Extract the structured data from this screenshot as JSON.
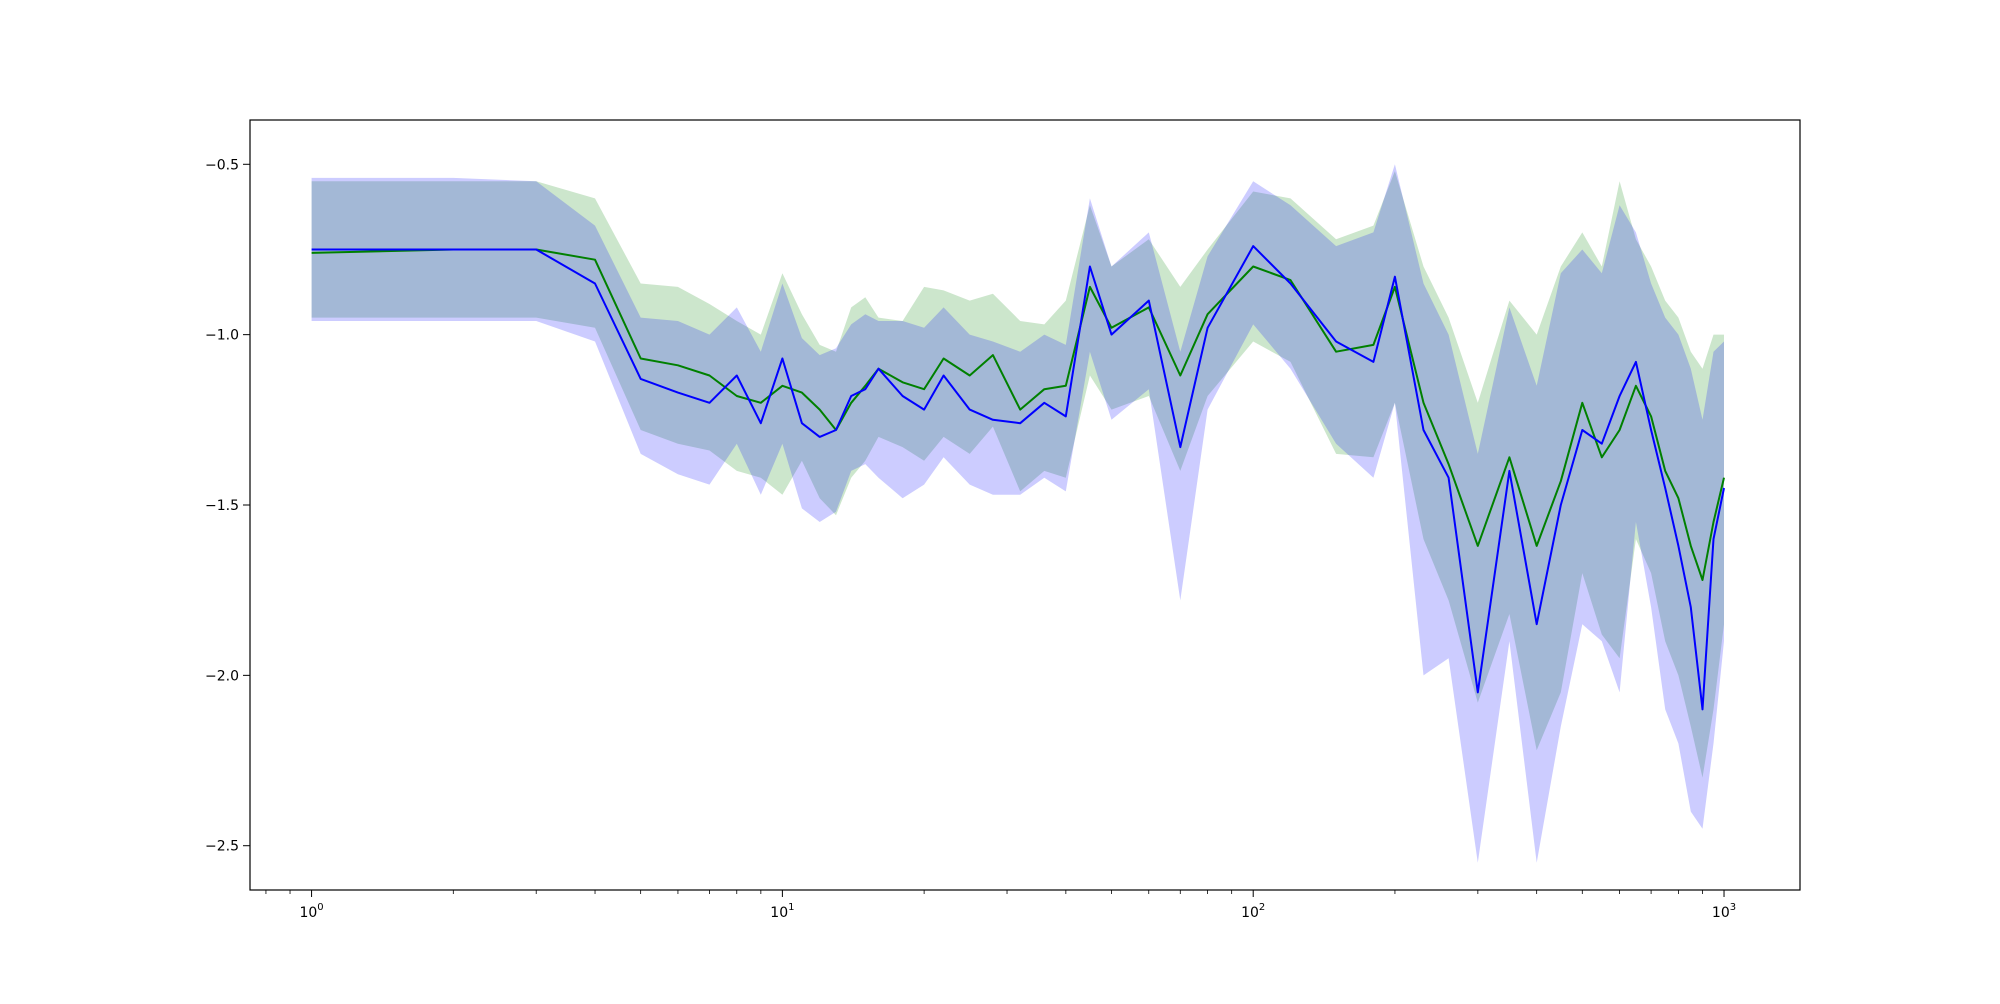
{
  "chart_data": {
    "type": "line",
    "title": "",
    "xlabel": "",
    "ylabel": "",
    "xscale": "log",
    "xlim": [
      0.74,
      1450
    ],
    "ylim": [
      -2.63,
      -0.37
    ],
    "grid": false,
    "legend": "none",
    "y_ticks": [
      {
        "value": -0.5,
        "label": "−0.5"
      },
      {
        "value": -1.0,
        "label": "−1.0"
      },
      {
        "value": -1.5,
        "label": "−1.5"
      },
      {
        "value": -2.0,
        "label": "−2.0"
      },
      {
        "value": -2.5,
        "label": "−2.5"
      }
    ],
    "x_ticks": [
      {
        "value": 1,
        "base": "10",
        "exp": "0"
      },
      {
        "value": 10,
        "base": "10",
        "exp": "1"
      },
      {
        "value": 100,
        "base": "10",
        "exp": "2"
      },
      {
        "value": 1000,
        "base": "10",
        "exp": "3"
      }
    ],
    "colors": {
      "green": "#008000",
      "blue": "#0000ff",
      "green_band": "rgba(0,128,0,0.2)",
      "blue_band": "rgba(0,0,255,0.2)"
    },
    "series": [
      {
        "color": "#008000",
        "band": "rgba(0,128,0,0.2)",
        "x": [
          1,
          2,
          3,
          4,
          5,
          6,
          7,
          8,
          9,
          10,
          11,
          12,
          13,
          14,
          15,
          16,
          18,
          20,
          22,
          25,
          28,
          32,
          36,
          40,
          45,
          50,
          60,
          70,
          80,
          100,
          120,
          150,
          180,
          200,
          230,
          260,
          300,
          350,
          400,
          450,
          500,
          550,
          600,
          650,
          700,
          750,
          800,
          850,
          900,
          950,
          1000
        ],
        "values": [
          -0.76,
          -0.75,
          -0.75,
          -0.78,
          -1.07,
          -1.09,
          -1.12,
          -1.18,
          -1.2,
          -1.15,
          -1.17,
          -1.22,
          -1.28,
          -1.2,
          -1.15,
          -1.1,
          -1.14,
          -1.16,
          -1.07,
          -1.12,
          -1.06,
          -1.22,
          -1.16,
          -1.15,
          -0.86,
          -0.98,
          -0.92,
          -1.12,
          -0.94,
          -0.8,
          -0.84,
          -1.05,
          -1.03,
          -0.86,
          -1.2,
          -1.38,
          -1.62,
          -1.36,
          -1.62,
          -1.43,
          -1.2,
          -1.36,
          -1.28,
          -1.15,
          -1.24,
          -1.4,
          -1.48,
          -1.62,
          -1.72,
          -1.55,
          -1.42
        ],
        "upper": [
          -0.55,
          -0.55,
          -0.55,
          -0.6,
          -0.85,
          -0.86,
          -0.91,
          -0.96,
          -1.0,
          -0.82,
          -0.94,
          -1.03,
          -1.05,
          -0.92,
          -0.89,
          -0.95,
          -0.96,
          -0.86,
          -0.87,
          -0.9,
          -0.88,
          -0.96,
          -0.97,
          -0.9,
          -0.62,
          -0.8,
          -0.72,
          -0.86,
          -0.75,
          -0.58,
          -0.6,
          -0.72,
          -0.68,
          -0.52,
          -0.8,
          -0.95,
          -1.2,
          -0.9,
          -1.0,
          -0.8,
          -0.7,
          -0.8,
          -0.55,
          -0.72,
          -0.8,
          -0.9,
          -0.95,
          -1.05,
          -1.1,
          -1.0,
          -1.0
        ],
        "lower": [
          -0.95,
          -0.95,
          -0.95,
          -0.98,
          -1.28,
          -1.32,
          -1.34,
          -1.4,
          -1.42,
          -1.47,
          -1.37,
          -1.48,
          -1.53,
          -1.42,
          -1.37,
          -1.3,
          -1.33,
          -1.37,
          -1.3,
          -1.35,
          -1.27,
          -1.46,
          -1.4,
          -1.42,
          -1.12,
          -1.22,
          -1.18,
          -1.4,
          -1.18,
          -1.02,
          -1.08,
          -1.35,
          -1.36,
          -1.2,
          -1.6,
          -1.78,
          -2.08,
          -1.82,
          -2.22,
          -2.05,
          -1.7,
          -1.88,
          -1.95,
          -1.6,
          -1.7,
          -1.9,
          -2.0,
          -2.15,
          -2.3,
          -2.1,
          -1.85
        ]
      },
      {
        "color": "#0000ff",
        "band": "rgba(0,0,255,0.2)",
        "x": [
          1,
          2,
          3,
          4,
          5,
          6,
          7,
          8,
          9,
          10,
          11,
          12,
          13,
          14,
          15,
          16,
          18,
          20,
          22,
          25,
          28,
          32,
          36,
          40,
          45,
          50,
          60,
          70,
          80,
          100,
          120,
          150,
          180,
          200,
          230,
          260,
          300,
          350,
          400,
          450,
          500,
          550,
          600,
          650,
          700,
          750,
          800,
          850,
          900,
          950,
          1000
        ],
        "values": [
          -0.75,
          -0.75,
          -0.75,
          -0.85,
          -1.13,
          -1.17,
          -1.2,
          -1.12,
          -1.26,
          -1.07,
          -1.26,
          -1.3,
          -1.28,
          -1.18,
          -1.16,
          -1.1,
          -1.18,
          -1.22,
          -1.12,
          -1.22,
          -1.25,
          -1.26,
          -1.2,
          -1.24,
          -0.8,
          -1.0,
          -0.9,
          -1.33,
          -0.98,
          -0.74,
          -0.85,
          -1.02,
          -1.08,
          -0.83,
          -1.28,
          -1.42,
          -2.05,
          -1.4,
          -1.85,
          -1.5,
          -1.28,
          -1.32,
          -1.18,
          -1.08,
          -1.28,
          -1.45,
          -1.62,
          -1.8,
          -2.1,
          -1.6,
          -1.45
        ],
        "upper": [
          -0.54,
          -0.54,
          -0.55,
          -0.68,
          -0.95,
          -0.96,
          -1.0,
          -0.92,
          -1.05,
          -0.85,
          -1.01,
          -1.06,
          -1.04,
          -0.97,
          -0.94,
          -0.96,
          -0.96,
          -0.98,
          -0.92,
          -1.0,
          -1.02,
          -1.05,
          -1.0,
          -1.03,
          -0.6,
          -0.8,
          -0.7,
          -1.05,
          -0.77,
          -0.55,
          -0.62,
          -0.74,
          -0.7,
          -0.5,
          -0.85,
          -1.0,
          -1.35,
          -0.92,
          -1.15,
          -0.82,
          -0.75,
          -0.82,
          -0.62,
          -0.7,
          -0.85,
          -0.95,
          -1.0,
          -1.1,
          -1.25,
          -1.05,
          -1.02
        ],
        "lower": [
          -0.96,
          -0.96,
          -0.96,
          -1.02,
          -1.35,
          -1.41,
          -1.44,
          -1.32,
          -1.47,
          -1.32,
          -1.51,
          -1.55,
          -1.52,
          -1.4,
          -1.38,
          -1.42,
          -1.48,
          -1.44,
          -1.36,
          -1.44,
          -1.47,
          -1.47,
          -1.42,
          -1.46,
          -1.05,
          -1.25,
          -1.16,
          -1.78,
          -1.22,
          -0.97,
          -1.1,
          -1.32,
          -1.42,
          -1.2,
          -2.0,
          -1.95,
          -2.55,
          -1.9,
          -2.55,
          -2.15,
          -1.85,
          -1.9,
          -2.05,
          -1.55,
          -1.8,
          -2.1,
          -2.2,
          -2.4,
          -2.45,
          -2.2,
          -1.9
        ]
      }
    ]
  }
}
